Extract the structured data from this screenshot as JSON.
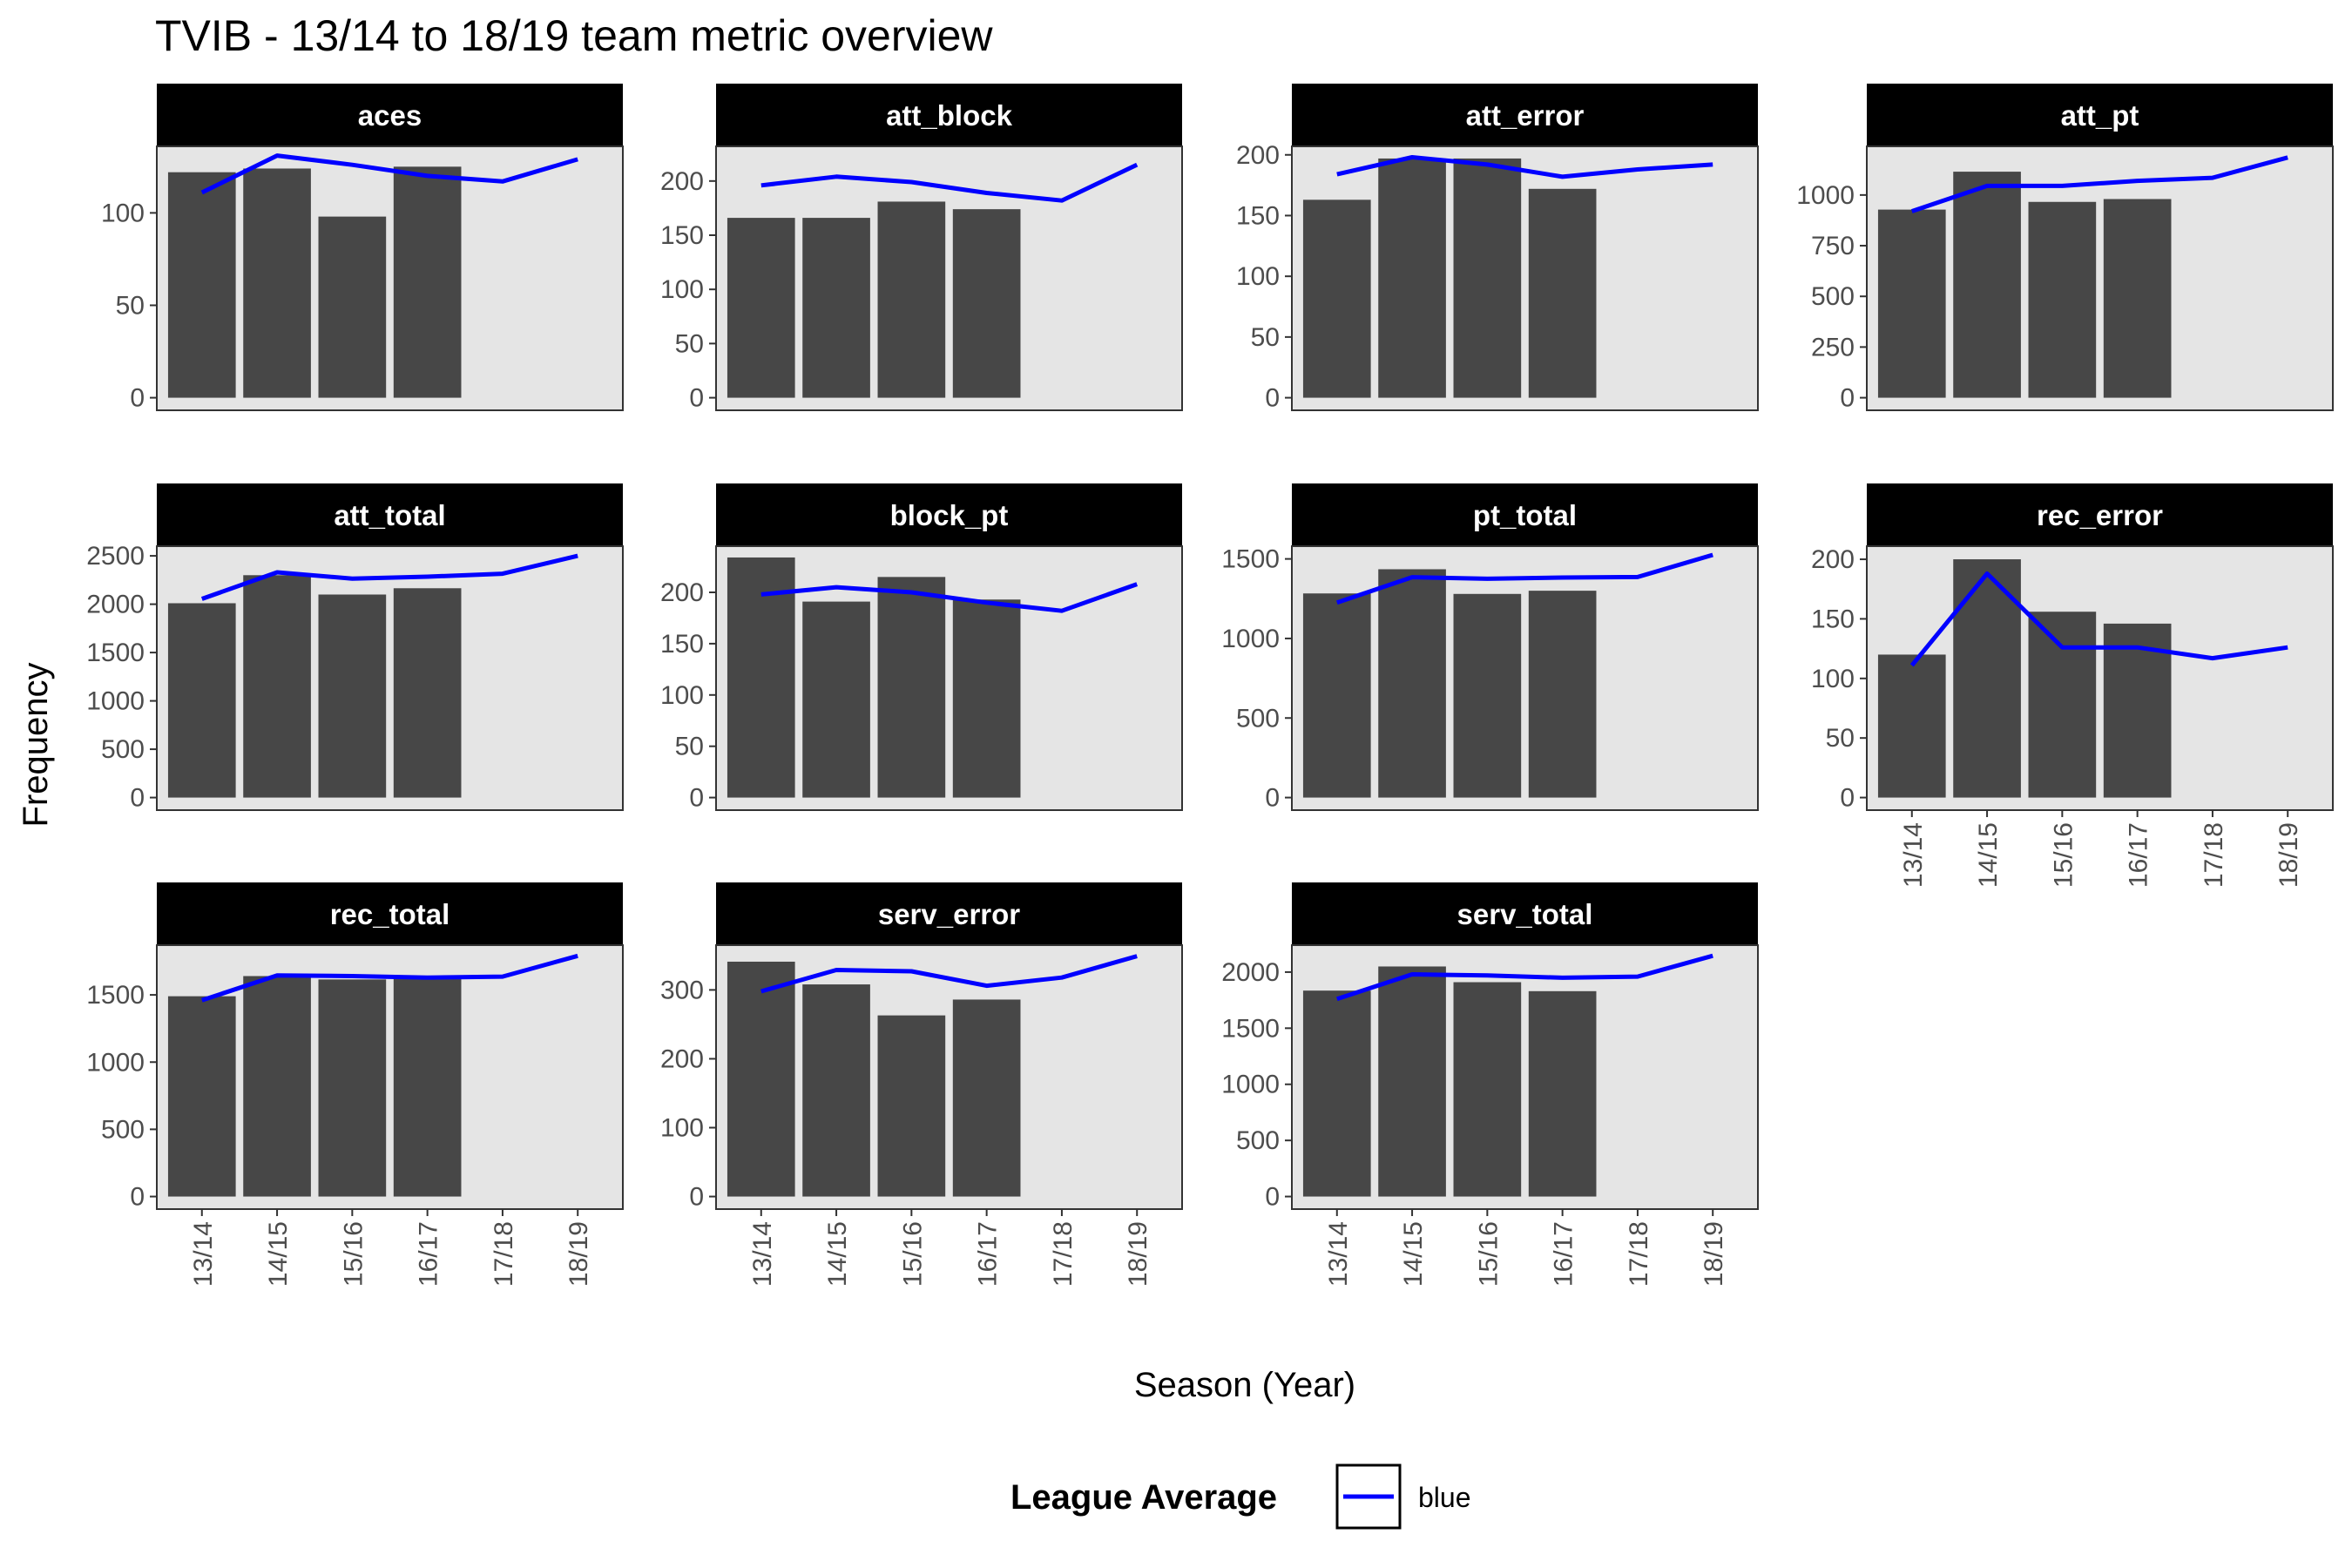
{
  "chart_data": {
    "type": "bar",
    "title": "TVIB - 13/14 to 18/19 team metric overview",
    "xlabel": "Season (Year)",
    "ylabel": "Frequency",
    "categories": [
      "13/14",
      "14/15",
      "15/16",
      "16/17",
      "17/18",
      "18/19"
    ],
    "legend": {
      "title": "League Average",
      "label": "blue",
      "color": "#0000ff",
      "placement": "bottom"
    },
    "colors": {
      "bar": "#474747",
      "panel": "#e5e5e5",
      "strip": "#000000",
      "line": "#0000ff"
    },
    "panels": [
      {
        "name": "aces",
        "bars": [
          122,
          124,
          98,
          125
        ],
        "line": [
          111,
          131,
          126,
          120,
          117,
          129
        ],
        "ymax": 136,
        "yticks": [
          0,
          50,
          100
        ]
      },
      {
        "name": "att_block",
        "bars": [
          166,
          166,
          181,
          174
        ],
        "line": [
          196,
          204,
          199,
          189,
          182,
          215
        ],
        "ymax": 232,
        "yticks": [
          0,
          50,
          100,
          150,
          200
        ]
      },
      {
        "name": "att_error",
        "bars": [
          163,
          197,
          197,
          172
        ],
        "line": [
          184,
          198,
          192,
          182,
          188,
          192
        ],
        "ymax": 207,
        "yticks": [
          0,
          50,
          100,
          150,
          200
        ]
      },
      {
        "name": "att_pt",
        "bars": [
          928,
          1115,
          966,
          980
        ],
        "line": [
          920,
          1045,
          1045,
          1070,
          1085,
          1185
        ],
        "ymax": 1240,
        "yticks": [
          0,
          250,
          500,
          750,
          1000
        ]
      },
      {
        "name": "att_total",
        "bars": [
          2010,
          2300,
          2100,
          2165
        ],
        "line": [
          2055,
          2330,
          2265,
          2285,
          2315,
          2500
        ],
        "ymax": 2600,
        "yticks": [
          0,
          500,
          1000,
          1500,
          2000,
          2500
        ]
      },
      {
        "name": "block_pt",
        "bars": [
          234,
          191,
          215,
          193
        ],
        "line": [
          198,
          205,
          200,
          190,
          182,
          208
        ],
        "ymax": 245,
        "yticks": [
          0,
          50,
          100,
          150,
          200
        ]
      },
      {
        "name": "pt_total",
        "bars": [
          1283,
          1435,
          1280,
          1300
        ],
        "line": [
          1225,
          1385,
          1375,
          1383,
          1386,
          1525
        ],
        "ymax": 1580,
        "yticks": [
          0,
          500,
          1000,
          1500
        ]
      },
      {
        "name": "rec_error",
        "bars": [
          120,
          200,
          156,
          146
        ],
        "line": [
          111,
          188,
          126,
          126,
          117,
          126
        ],
        "ymax": 211,
        "yticks": [
          0,
          50,
          100,
          150,
          200
        ]
      },
      {
        "name": "rec_total",
        "bars": [
          1490,
          1640,
          1615,
          1620
        ],
        "line": [
          1460,
          1645,
          1640,
          1628,
          1636,
          1790
        ],
        "ymax": 1870,
        "yticks": [
          0,
          500,
          1000,
          1500
        ]
      },
      {
        "name": "serv_error",
        "bars": [
          341,
          308,
          263,
          286
        ],
        "line": [
          298,
          329,
          327,
          306,
          318,
          349
        ],
        "ymax": 365,
        "yticks": [
          0,
          100,
          200,
          300
        ]
      },
      {
        "name": "serv_total",
        "bars": [
          1835,
          2050,
          1910,
          1830
        ],
        "line": [
          1760,
          1980,
          1970,
          1950,
          1960,
          2145
        ],
        "ymax": 2240,
        "yticks": [
          0,
          500,
          1000,
          1500,
          2000
        ]
      }
    ]
  }
}
